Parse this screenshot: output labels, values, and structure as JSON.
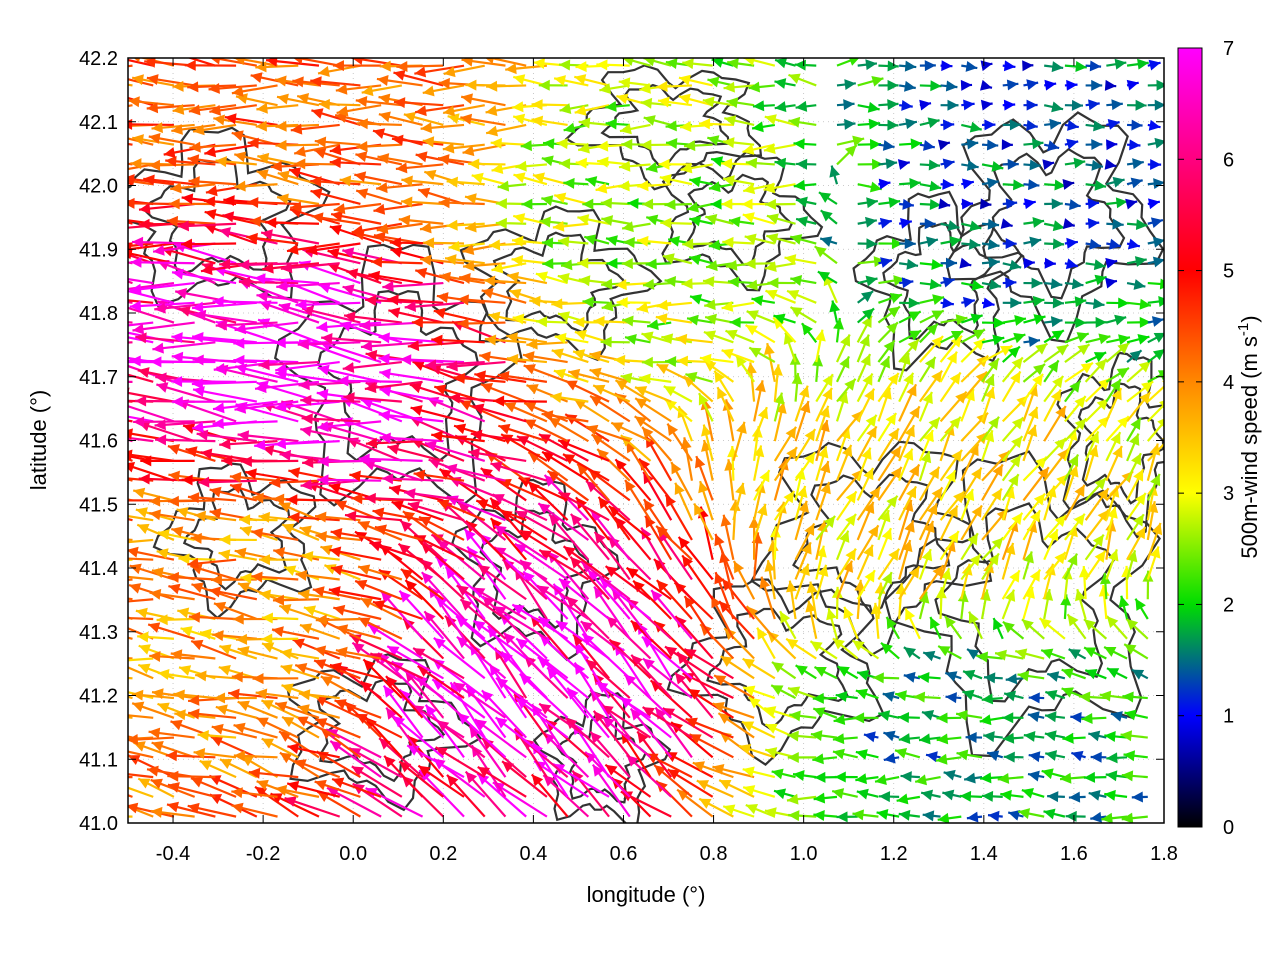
{
  "chart_data": {
    "type": "vector-field",
    "xlabel": "longitude (°)",
    "ylabel": "latitude (°)",
    "xlim": [
      -0.5,
      1.8
    ],
    "ylim": [
      41.0,
      42.2
    ],
    "x_ticks": [
      "-0.4",
      "-0.2",
      "0.0",
      "0.2",
      "0.4",
      "0.6",
      "0.8",
      "1.0",
      "1.2",
      "1.4",
      "1.6",
      "1.8"
    ],
    "y_ticks": [
      "41.0",
      "41.1",
      "41.2",
      "41.3",
      "41.4",
      "41.5",
      "41.6",
      "41.7",
      "41.8",
      "41.9",
      "42.0",
      "42.1",
      "42.2"
    ],
    "grid": true,
    "colorbar": {
      "label": "500m-wind speed (m s",
      "label_superscript": "-1",
      "label_suffix": ")",
      "range": [
        0,
        7
      ],
      "ticks": [
        "0",
        "1",
        "2",
        "3",
        "4",
        "5",
        "6",
        "7"
      ],
      "colors": [
        "#000000",
        "#0000ff",
        "#00dd00",
        "#ffff00",
        "#ff8800",
        "#ff0000",
        "#ff00ff"
      ]
    },
    "wind_regions": [
      {
        "region": "west-central",
        "lon": [
          -0.5,
          0.3
        ],
        "lat": [
          41.45,
          42.0
        ],
        "speed": 7.0,
        "direction": "westward",
        "u": -1.0,
        "v": 0.12
      },
      {
        "region": "northwest",
        "lon": [
          -0.5,
          0.4
        ],
        "lat": [
          42.0,
          42.2
        ],
        "speed": 5.0,
        "direction": "westward",
        "u": -1.0,
        "v": 0.05
      },
      {
        "region": "southwest",
        "lon": [
          -0.5,
          0.0
        ],
        "lat": [
          41.25,
          41.45
        ],
        "speed": 4.5,
        "direction": "westward",
        "u": -1.0,
        "v": 0.15
      },
      {
        "region": "south-central",
        "lon": [
          0.2,
          0.7
        ],
        "lat": [
          41.0,
          41.45
        ],
        "speed": 6.8,
        "direction": "northwestward",
        "u": -0.7,
        "v": 0.7
      },
      {
        "region": "north-central",
        "lon": [
          0.3,
          1.1
        ],
        "lat": [
          41.75,
          42.2
        ],
        "speed": 3.0,
        "direction": "westward",
        "u": -1.0,
        "v": 0.02
      },
      {
        "region": "center-east",
        "lon": [
          1.0,
          1.6
        ],
        "lat": [
          41.3,
          41.65
        ],
        "speed": 3.8,
        "direction": "northeastward",
        "u": 0.5,
        "v": 0.85
      },
      {
        "region": "southeast",
        "lon": [
          0.9,
          1.8
        ],
        "lat": [
          41.0,
          41.2
        ],
        "speed": 2.0,
        "direction": "westward",
        "u": -1.0,
        "v": 0.05
      },
      {
        "region": "northeast",
        "lon": [
          1.1,
          1.8
        ],
        "lat": [
          41.8,
          42.2
        ],
        "speed": 1.5,
        "direction": "eastward",
        "u": 1.0,
        "v": 0.0
      }
    ]
  }
}
